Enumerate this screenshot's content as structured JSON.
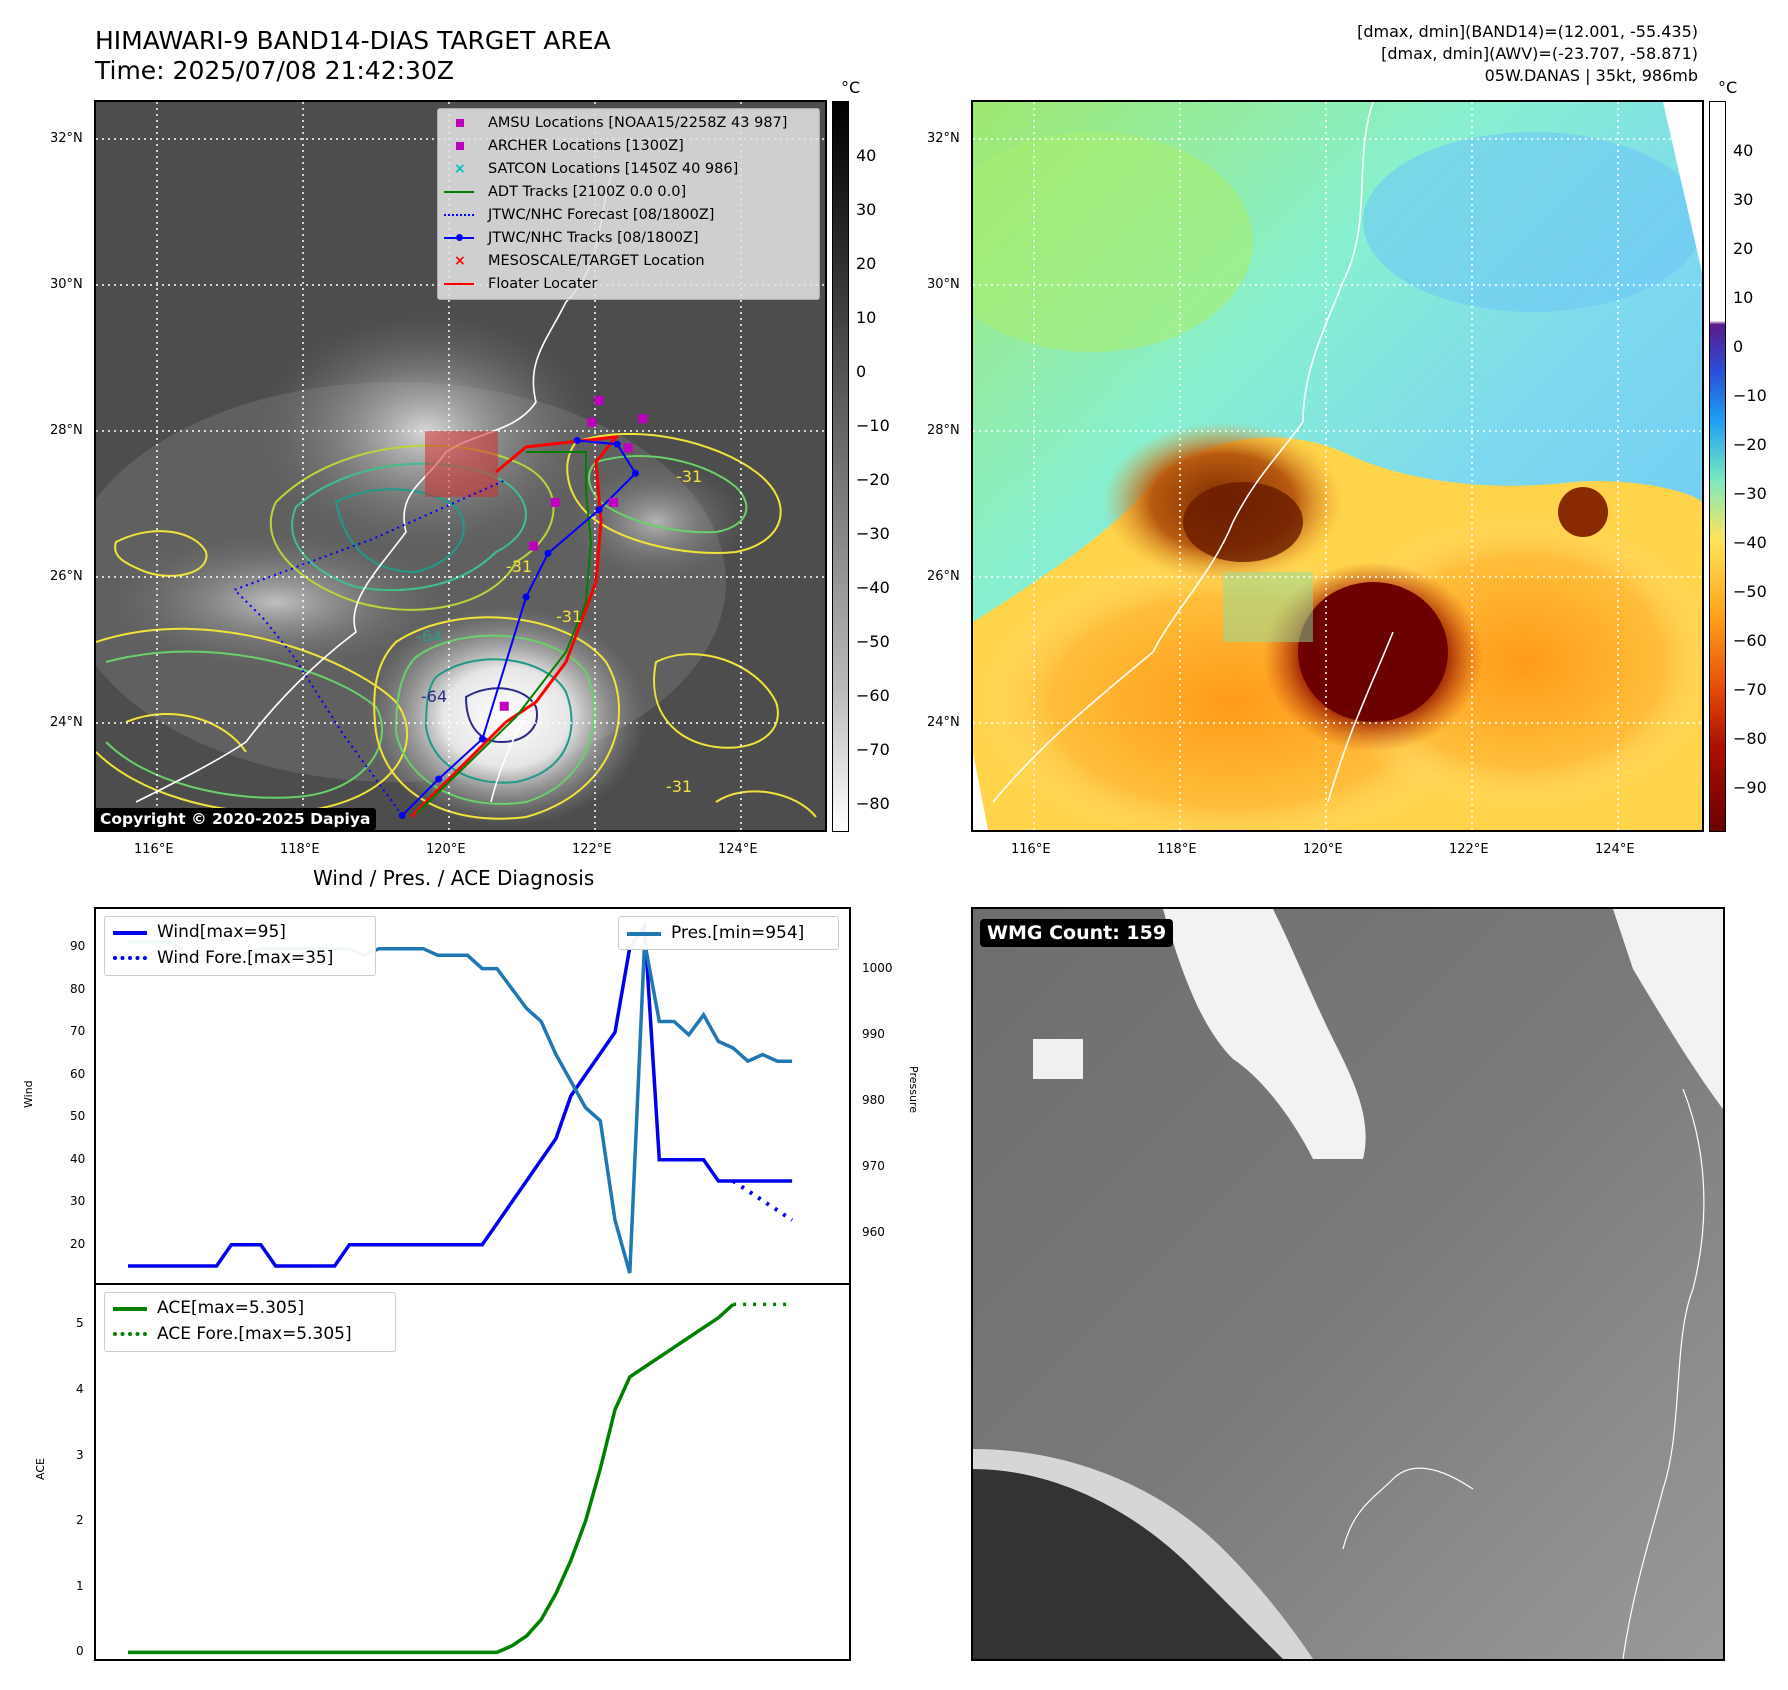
{
  "header": {
    "title_line1": "HIMAWARI-9 BAND14-DIAS TARGET AREA",
    "title_line2": "Time: 2025/07/08 21:42:30Z",
    "info_line1": "[dmax, dmin](BAND14)=(12.001, -55.435)",
    "info_line2": "[dmax, dmin](AWV)=(-23.707, -58.871)",
    "info_line3": "05W.DANAS | 35kt, 986mb"
  },
  "map": {
    "lon_ticks": [
      "116°E",
      "118°E",
      "120°E",
      "122°E",
      "124°E"
    ],
    "lat_ticks": [
      "32°N",
      "30°N",
      "28°N",
      "26°N",
      "24°N"
    ],
    "lon_range": [
      115.2,
      125.2
    ],
    "lat_range": [
      22.6,
      32.6
    ],
    "cbar_unit": "°C",
    "ir_cbar_ticks": [
      "40",
      "30",
      "20",
      "10",
      "0",
      "−10",
      "−20",
      "−30",
      "−40",
      "−50",
      "−60",
      "−70",
      "−80"
    ],
    "wv_cbar_ticks": [
      "40",
      "30",
      "20",
      "10",
      "0",
      "−10",
      "−20",
      "−30",
      "−40",
      "−50",
      "−60",
      "−70",
      "−80",
      "−90"
    ],
    "copyright": "Copyright © 2020-2025 Dapiya",
    "contour_labels": [
      "-31",
      "-31",
      "-64",
      "-31",
      "-64",
      "-31"
    ],
    "legend": [
      {
        "label": "AMSU Locations [NOAA15/2258Z 43 987]",
        "marker": "square",
        "color": "#bf00bf"
      },
      {
        "label": "ARCHER Locations [1300Z]",
        "marker": "square",
        "color": "#bf00bf"
      },
      {
        "label": "SATCON Locations [1450Z 40 986]",
        "marker": "x",
        "color": "#00bfbf"
      },
      {
        "label": "ADT Tracks [2100Z 0.0 0.0]",
        "marker": "line",
        "color": "#008000"
      },
      {
        "label": "JTWC/NHC Forecast [08/1800Z]",
        "marker": "dotted",
        "color": "#0000ff"
      },
      {
        "label": "JTWC/NHC Tracks [08/1800Z]",
        "marker": "line-dot",
        "color": "#0000ff"
      },
      {
        "label": "MESOSCALE/TARGET Location",
        "marker": "x",
        "color": "#ff0000"
      },
      {
        "label": "Floater Locater",
        "marker": "line",
        "color": "#ff0000"
      }
    ],
    "jtwc_track": [
      [
        119.4,
        22.8
      ],
      [
        119.9,
        23.3
      ],
      [
        120.5,
        23.85
      ],
      [
        121.1,
        25.8
      ],
      [
        121.4,
        26.4
      ],
      [
        122.1,
        27.0
      ],
      [
        122.6,
        27.5
      ],
      [
        122.35,
        27.9
      ],
      [
        121.8,
        27.95
      ]
    ],
    "jtwc_forecast": [
      [
        119.4,
        22.8
      ],
      [
        118.6,
        23.9
      ],
      [
        117.9,
        25.0
      ],
      [
        117.5,
        25.5
      ],
      [
        117.1,
        25.9
      ],
      [
        119.0,
        26.6
      ],
      [
        120.8,
        27.4
      ]
    ],
    "amsu_points": [
      [
        121.2,
        26.5
      ],
      [
        121.5,
        27.1
      ],
      [
        122.3,
        27.1
      ],
      [
        122.0,
        28.2
      ],
      [
        122.7,
        28.25
      ],
      [
        122.1,
        28.5
      ],
      [
        122.5,
        27.85
      ],
      [
        120.8,
        24.3
      ]
    ],
    "floater_box": {
      "lon": [
        119.6,
        120.6
      ],
      "lat": [
        27.1,
        28.0
      ]
    }
  },
  "wind_panel": {
    "title": "Wind / Pres. / ACE Diagnosis",
    "ylabel_left": "Wind",
    "ylabel_right": "Pressure",
    "left_ticks": [
      20,
      30,
      40,
      50,
      60,
      70,
      80,
      90
    ],
    "right_ticks": [
      960,
      970,
      980,
      990,
      1000
    ],
    "legend_wind": "Wind[max=95]",
    "legend_wind_fore": "Wind Fore.[max=35]",
    "legend_pres": "Pres.[min=954]",
    "colors": {
      "wind": "#0000ee",
      "pres": "#1f77b4"
    }
  },
  "ace_panel": {
    "ylabel": "ACE",
    "ticks": [
      0,
      1,
      2,
      3,
      4,
      5
    ],
    "legend_ace": "ACE[max=5.305]",
    "legend_ace_fore": "ACE Fore.[max=5.305]",
    "color": "#008000"
  },
  "wmg": {
    "label": "WMG Count: 159"
  },
  "chart_data": [
    {
      "type": "line",
      "title": "Wind / Pres. / ACE Diagnosis",
      "ylabel": "Wind",
      "y2label": "Pressure",
      "xlim": [
        0,
        50
      ],
      "ylim": [
        11,
        99
      ],
      "y2lim": [
        952.5,
        1009
      ],
      "series": [
        {
          "name": "Wind[max=95]",
          "axis": "left",
          "x": [
            0,
            1,
            2,
            3,
            4,
            5,
            6,
            7,
            8,
            9,
            10,
            11,
            12,
            13,
            14,
            15,
            16,
            17,
            18,
            19,
            20,
            21,
            22,
            23,
            24,
            25,
            26,
            27,
            28,
            29,
            30,
            31,
            32,
            33,
            34,
            35,
            36,
            37,
            38,
            39,
            40,
            41,
            42,
            43,
            44,
            45
          ],
          "values": [
            15,
            15,
            15,
            15,
            15,
            15,
            15,
            20,
            20,
            20,
            15,
            15,
            15,
            15,
            15,
            20,
            20,
            20,
            20,
            20,
            20,
            20,
            20,
            20,
            20,
            25,
            30,
            35,
            40,
            45,
            55,
            60,
            65,
            70,
            90,
            95,
            40,
            40,
            40,
            40,
            35,
            35,
            35,
            35,
            35,
            35
          ]
        },
        {
          "name": "Wind Fore.[max=35]",
          "axis": "left",
          "x": [
            41,
            42,
            43,
            44,
            45
          ],
          "values": [
            35,
            35,
            35,
            35,
            35
          ]
        },
        {
          "name": "Pres.[min=954]",
          "axis": "right",
          "x": [
            0,
            1,
            2,
            3,
            4,
            5,
            6,
            7,
            8,
            9,
            10,
            11,
            12,
            13,
            14,
            15,
            16,
            17,
            18,
            19,
            20,
            21,
            22,
            23,
            24,
            25,
            26,
            27,
            28,
            29,
            30,
            31,
            32,
            33,
            34,
            35,
            36,
            37,
            38,
            39,
            40,
            41,
            42,
            43,
            44,
            45
          ],
          "values": [
            1004,
            1004,
            1004,
            1004,
            1002,
            1002,
            1002,
            1002,
            1002,
            1003,
            1003,
            1003,
            1003,
            1003,
            1003,
            1003,
            1002,
            1003,
            1003,
            1003,
            1003,
            1002,
            1002,
            1002,
            1000,
            1000,
            997,
            994,
            992,
            987,
            983,
            979,
            977,
            962,
            954,
            1004,
            992,
            992,
            990,
            993,
            989,
            988,
            986,
            987,
            986,
            986
          ]
        }
      ]
    },
    {
      "type": "line",
      "ylabel": "ACE",
      "xlim": [
        0,
        50
      ],
      "ylim": [
        -0.1,
        5.6
      ],
      "series": [
        {
          "name": "ACE[max=5.305]",
          "x": [
            0,
            5,
            10,
            15,
            20,
            25,
            26,
            27,
            28,
            29,
            30,
            31,
            32,
            33,
            34,
            35,
            36,
            37,
            38,
            39,
            40,
            41
          ],
          "values": [
            0,
            0,
            0,
            0,
            0,
            0,
            0.1,
            0.25,
            0.5,
            0.9,
            1.4,
            2.0,
            2.8,
            3.7,
            4.2,
            4.35,
            4.5,
            4.65,
            4.8,
            4.95,
            5.1,
            5.305
          ]
        },
        {
          "name": "ACE Fore.[max=5.305]",
          "x": [
            41,
            42,
            43,
            44,
            45
          ],
          "values": [
            5.305,
            5.305,
            5.305,
            5.305,
            5.305
          ]
        }
      ]
    }
  ]
}
